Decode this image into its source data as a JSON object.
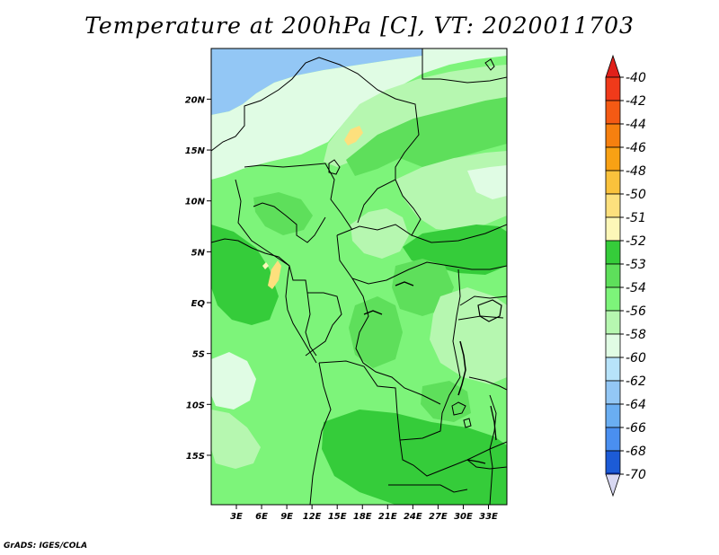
{
  "title": "Temperature at 200hPa [C], VT: 2020011703",
  "credit": "GrADS: IGES/COLA",
  "lat_ticks": [
    {
      "label": "20N",
      "value": 20
    },
    {
      "label": "15N",
      "value": 15
    },
    {
      "label": "10N",
      "value": 10
    },
    {
      "label": "5N",
      "value": 5
    },
    {
      "label": "EQ",
      "value": 0
    },
    {
      "label": "5S",
      "value": -5
    },
    {
      "label": "10S",
      "value": -10
    },
    {
      "label": "15S",
      "value": -15
    }
  ],
  "lon_ticks": [
    {
      "label": "3E",
      "value": 3
    },
    {
      "label": "6E",
      "value": 6
    },
    {
      "label": "9E",
      "value": 9
    },
    {
      "label": "12E",
      "value": 12
    },
    {
      "label": "15E",
      "value": 15
    },
    {
      "label": "18E",
      "value": 18
    },
    {
      "label": "21E",
      "value": 21
    },
    {
      "label": "24E",
      "value": 24
    },
    {
      "label": "27E",
      "value": 27
    },
    {
      "label": "30E",
      "value": 30
    },
    {
      "label": "33E",
      "value": 33
    }
  ],
  "colorbar": [
    {
      "label": "-40",
      "color": "#f03a1a"
    },
    {
      "label": "-42",
      "color": "#f45a14"
    },
    {
      "label": "-44",
      "color": "#f6800f"
    },
    {
      "label": "-46",
      "color": "#f8a114"
    },
    {
      "label": "-48",
      "color": "#fac23c"
    },
    {
      "label": "-50",
      "color": "#fde07d"
    },
    {
      "label": "-51",
      "color": "#fdf7b8"
    },
    {
      "label": "-52",
      "color": "#35cc3a"
    },
    {
      "label": "-53",
      "color": "#5edf5b"
    },
    {
      "label": "-54",
      "color": "#7df47a"
    },
    {
      "label": "-56",
      "color": "#b6f7b0"
    },
    {
      "label": "-58",
      "color": "#e0fce4"
    },
    {
      "label": "-60",
      "color": "#b7e3fa"
    },
    {
      "label": "-62",
      "color": "#93c7f5"
    },
    {
      "label": "-64",
      "color": "#6aaef2"
    },
    {
      "label": "-66",
      "color": "#4a8ff0"
    },
    {
      "label": "-68",
      "color": "#1c5bd6"
    },
    {
      "label": "-70",
      "color": "#0c34a4"
    }
  ],
  "colorbar_ends": {
    "top": "#e0201a",
    "bottom": "#d8d8f2"
  }
}
